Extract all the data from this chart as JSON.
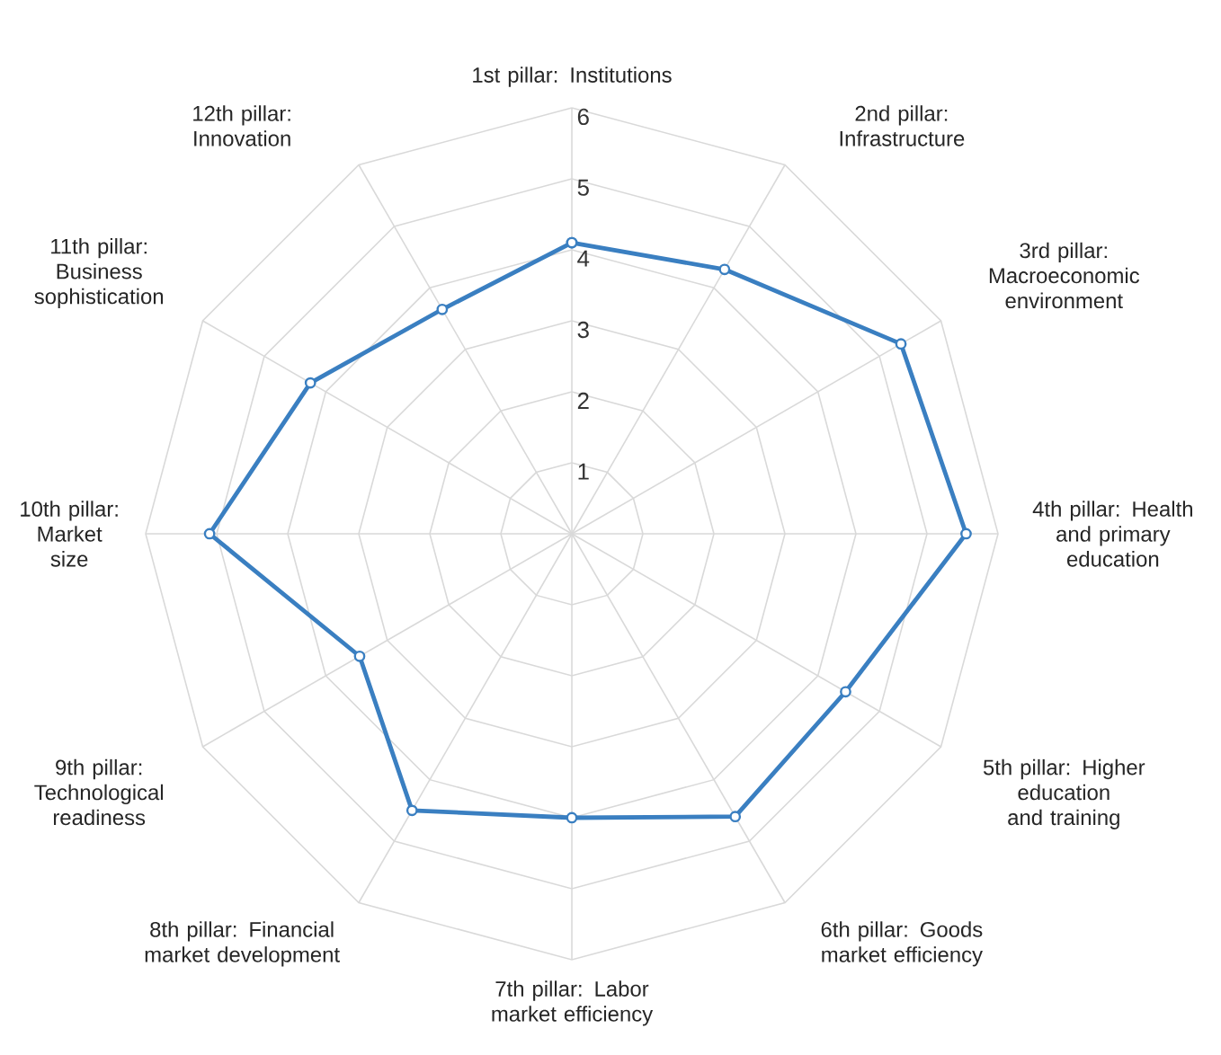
{
  "chart_data": {
    "type": "radar",
    "categories": [
      "1st pillar: Institutions",
      "2nd pillar: Infrastructure",
      "3rd pillar: Macroeconomic environment",
      "4th pillar: Health and primary education",
      "5th pillar: Higher education and training",
      "6th pillar: Goods market efficiency",
      "7th pillar: Labor market efficiency",
      "8th pillar: Financial market development",
      "9th pillar: Technological readiness",
      "10th pillar: Market size",
      "11th pillar: Business sophistication",
      "12th pillar: Innovation"
    ],
    "series": [
      {
        "color": "#3a7fc1",
        "values": [
          4.1,
          4.3,
          5.35,
          5.55,
          4.45,
          4.6,
          4.0,
          4.5,
          3.45,
          5.1,
          4.25,
          3.65
        ]
      }
    ],
    "ylim": [
      0,
      6
    ],
    "yticks": [
      1,
      2,
      3,
      4,
      5,
      6
    ],
    "grid": true,
    "marker": "circle",
    "line_style": "solid"
  }
}
